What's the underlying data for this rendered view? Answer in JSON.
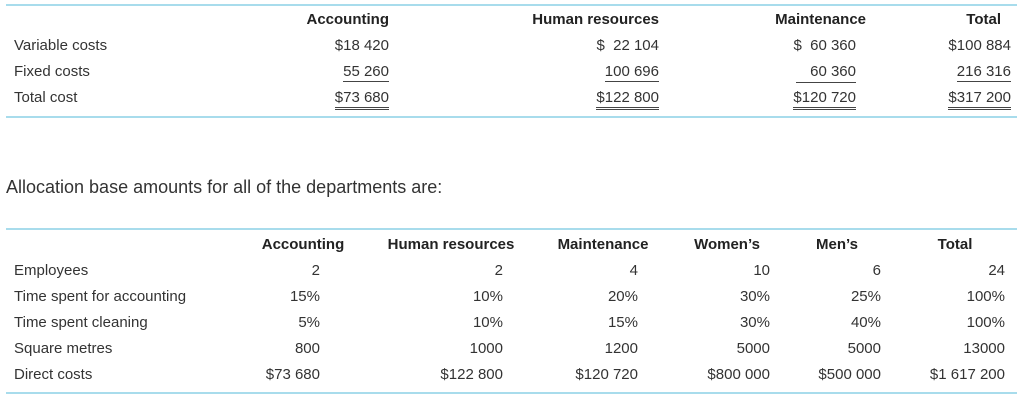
{
  "cost_table": {
    "headers": [
      "",
      "Accounting",
      "Human resources",
      "Maintenance",
      "Total"
    ],
    "rows": [
      {
        "label": "Variable costs",
        "values": [
          "$18 420",
          "$  22 104",
          "$  60 360",
          "$100 884"
        ]
      },
      {
        "label": "Fixed costs",
        "values": [
          "55 260",
          "100 696",
          "60 360",
          "216 316"
        ]
      },
      {
        "label": "Total cost",
        "values": [
          "$73 680",
          "$122 800",
          "$120 720",
          "$317 200"
        ]
      }
    ]
  },
  "intro_text": "Allocation base amounts for all of the departments are:",
  "allocation_table": {
    "headers": [
      "",
      "Accounting",
      "Human resources",
      "Maintenance",
      "Women’s",
      "Men’s",
      "Total"
    ],
    "rows": [
      {
        "label": "Employees",
        "values": [
          "2",
          "2",
          "4",
          "10",
          "6",
          "24"
        ]
      },
      {
        "label": "Time spent for accounting",
        "values": [
          "15%",
          "10%",
          "20%",
          "30%",
          "25%",
          "100%"
        ]
      },
      {
        "label": "Time spent cleaning",
        "values": [
          "5%",
          "10%",
          "15%",
          "30%",
          "40%",
          "100%"
        ]
      },
      {
        "label": "Square metres",
        "values": [
          "800",
          "1000",
          "1200",
          "5000",
          "5000",
          "13000"
        ]
      },
      {
        "label": "Direct costs",
        "values": [
          "$73 680",
          "$122 800",
          "$120 720",
          "$800 000",
          "$500 000",
          "$1 617 200"
        ]
      }
    ]
  },
  "colors": {
    "rule": "#a8dcec",
    "text": "#333333"
  }
}
